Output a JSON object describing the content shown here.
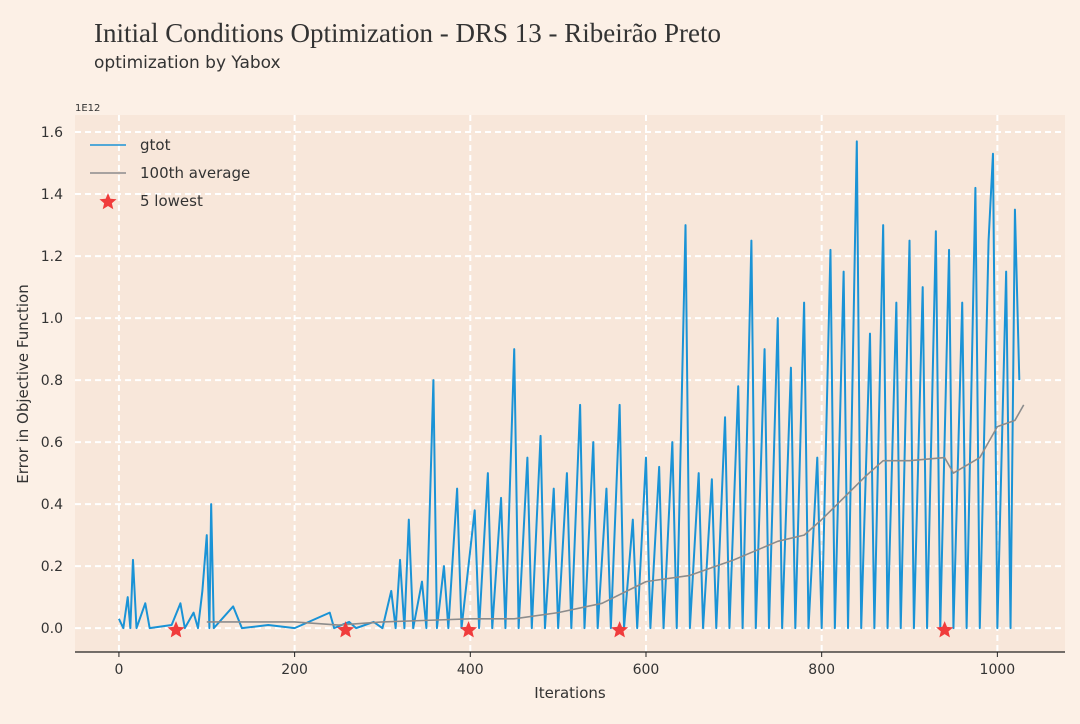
{
  "chart_data": {
    "type": "line",
    "title": "Initial Conditions Optimization - DRS 13 - Ribeirão Preto",
    "subtitle": "optimization by Yabox",
    "xlabel": "Iterations",
    "ylabel": "Error in Objective Function",
    "y_offset_text": "1E12",
    "xlim": [
      -50,
      1077
    ],
    "ylim": [
      -0.077,
      1.655
    ],
    "xticks": [
      0,
      200,
      400,
      600,
      800,
      1000
    ],
    "yticks": [
      {
        "value": 0,
        "label": "0.0"
      },
      0.2,
      0.4,
      0.6,
      0.8,
      {
        "value": 1,
        "label": "1.0"
      },
      1.2,
      1.4,
      1.6
    ],
    "grid": true,
    "legend": "upper left",
    "series": [
      {
        "name": "gtot",
        "color": "#1a93d6",
        "x": [
          0,
          5,
          10,
          13,
          16,
          20,
          30,
          35,
          60,
          70,
          75,
          85,
          90,
          95,
          100,
          103,
          105,
          108,
          130,
          140,
          170,
          200,
          240,
          245,
          262,
          270,
          290,
          300,
          310,
          315,
          320,
          325,
          330,
          335,
          345,
          350,
          358,
          362,
          370,
          375,
          385,
          390,
          405,
          410,
          420,
          425,
          435,
          440,
          450,
          455,
          465,
          470,
          480,
          485,
          495,
          500,
          510,
          515,
          525,
          530,
          540,
          545,
          555,
          560,
          570,
          575,
          585,
          590,
          600,
          605,
          615,
          620,
          630,
          635,
          645,
          650,
          660,
          665,
          675,
          680,
          690,
          695,
          705,
          710,
          720,
          725,
          735,
          740,
          750,
          755,
          765,
          770,
          780,
          785,
          795,
          800,
          810,
          815,
          825,
          830,
          840,
          845,
          855,
          860,
          870,
          875,
          885,
          890,
          900,
          905,
          915,
          920,
          930,
          935,
          945,
          950,
          960,
          965,
          975,
          980,
          990,
          995,
          1000,
          1010,
          1015,
          1020,
          1025
        ],
        "values": [
          0.03,
          0,
          0.1,
          0,
          0.22,
          0,
          0.08,
          0,
          0.01,
          0.08,
          0,
          0.05,
          0,
          0.12,
          0.3,
          0,
          0.4,
          0,
          0.07,
          0,
          0.01,
          0,
          0.05,
          0,
          0.02,
          0,
          0.02,
          0,
          0.12,
          0,
          0.22,
          0,
          0.35,
          0,
          0.15,
          0,
          0.8,
          0,
          0.2,
          0,
          0.45,
          0,
          0.38,
          0,
          0.5,
          0,
          0.42,
          0,
          0.9,
          0,
          0.55,
          0,
          0.62,
          0,
          0.45,
          0,
          0.5,
          0,
          0.72,
          0,
          0.6,
          0,
          0.45,
          0,
          0.72,
          0,
          0.35,
          0,
          0.55,
          0,
          0.52,
          0,
          0.6,
          0,
          1.3,
          0,
          0.5,
          0,
          0.48,
          0,
          0.68,
          0,
          0.78,
          0,
          1.25,
          0,
          0.9,
          0,
          1.0,
          0,
          0.84,
          0,
          1.05,
          0,
          0.55,
          0,
          1.22,
          0,
          1.15,
          0,
          1.57,
          0,
          0.95,
          0,
          1.3,
          0,
          1.05,
          0,
          1.25,
          0,
          1.1,
          0,
          1.28,
          0,
          1.22,
          0,
          1.05,
          0,
          1.42,
          0,
          1.25,
          1.53,
          0,
          1.15,
          0,
          1.35,
          0.8
        ]
      },
      {
        "name": "100th average",
        "color": "#8c8c8c",
        "x": [
          100,
          150,
          200,
          250,
          300,
          350,
          400,
          450,
          500,
          550,
          600,
          650,
          700,
          750,
          780,
          800,
          850,
          870,
          900,
          940,
          950,
          980,
          1000,
          1020,
          1030
        ],
        "values": [
          0.02,
          0.02,
          0.02,
          0.01,
          0.02,
          0.025,
          0.03,
          0.03,
          0.05,
          0.08,
          0.15,
          0.17,
          0.22,
          0.28,
          0.3,
          0.35,
          0.49,
          0.54,
          0.54,
          0.55,
          0.5,
          0.55,
          0.65,
          0.67,
          0.72
        ]
      },
      {
        "name": "5 lowest",
        "color": "#f03c3c",
        "marker": "star",
        "x": [
          65,
          258,
          398,
          570,
          940
        ],
        "values": [
          0,
          0,
          0,
          0,
          0
        ]
      }
    ]
  }
}
